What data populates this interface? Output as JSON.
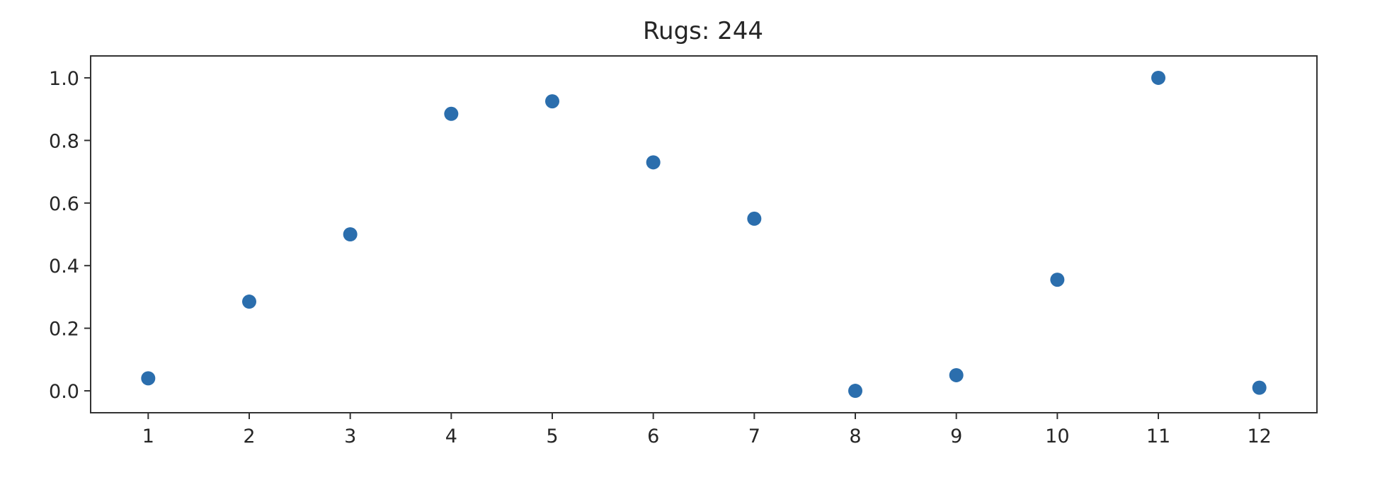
{
  "chart_data": {
    "type": "scatter",
    "title": "Rugs: 244",
    "xlabel": "",
    "ylabel": "",
    "x": [
      1,
      2,
      3,
      4,
      5,
      6,
      7,
      8,
      9,
      10,
      11,
      12
    ],
    "y": [
      0.04,
      0.285,
      0.5,
      0.885,
      0.925,
      0.73,
      0.55,
      0.0,
      0.05,
      0.355,
      1.0,
      0.01
    ],
    "xticks": [
      1,
      2,
      3,
      4,
      5,
      6,
      7,
      8,
      9,
      10,
      11,
      12
    ],
    "xtick_labels": [
      "1",
      "2",
      "3",
      "4",
      "5",
      "6",
      "7",
      "8",
      "9",
      "10",
      "11",
      "12"
    ],
    "yticks": [
      0.0,
      0.2,
      0.4,
      0.6,
      0.8,
      1.0
    ],
    "ytick_labels": [
      "0.0",
      "0.2",
      "0.4",
      "0.6",
      "0.8",
      "1.0"
    ],
    "xlim": [
      0.43,
      12.57
    ],
    "ylim": [
      -0.07,
      1.07
    ],
    "grid": false,
    "marker_color": "#2b6ead"
  }
}
